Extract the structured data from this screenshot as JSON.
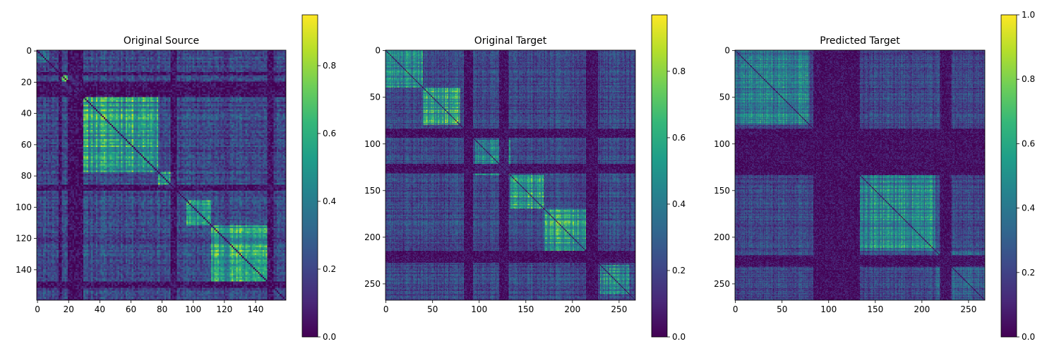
{
  "chart_data": [
    {
      "type": "heatmap",
      "title": "Original Source",
      "size": 160,
      "xticks": [
        0,
        20,
        40,
        60,
        80,
        100,
        120,
        140
      ],
      "yticks": [
        0,
        20,
        40,
        60,
        80,
        100,
        120,
        140
      ],
      "colorbar": {
        "min": 0.0,
        "max": 0.95,
        "ticks": [
          0.0,
          0.2,
          0.4,
          0.6,
          0.8
        ],
        "tick_labels": [
          "0.0",
          "0.2",
          "0.4",
          "0.6",
          "0.8"
        ]
      },
      "colormap": "viridis",
      "blocks": [
        [
          0,
          8,
          0.45
        ],
        [
          16,
          27,
          0.85
        ],
        [
          30,
          78,
          0.7
        ],
        [
          78,
          88,
          0.65
        ],
        [
          96,
          112,
          0.6
        ],
        [
          112,
          148,
          0.72
        ]
      ],
      "dark_bands": [
        [
          14,
          16
        ],
        [
          20,
          30
        ],
        [
          86,
          90
        ],
        [
          148,
          152
        ]
      ],
      "seed": 11
    },
    {
      "type": "heatmap",
      "title": "Original Target",
      "size": 268,
      "xticks": [
        0,
        50,
        100,
        150,
        200,
        250
      ],
      "yticks": [
        0,
        50,
        100,
        150,
        200,
        250
      ],
      "colorbar": {
        "min": 0.0,
        "max": 0.97,
        "ticks": [
          0.0,
          0.2,
          0.4,
          0.6,
          0.8
        ],
        "tick_labels": [
          "0.0",
          "0.2",
          "0.4",
          "0.6",
          "0.8"
        ]
      },
      "colormap": "viridis",
      "blocks": [
        [
          0,
          40,
          0.6
        ],
        [
          40,
          80,
          0.72
        ],
        [
          96,
          134,
          0.55
        ],
        [
          134,
          170,
          0.68
        ],
        [
          170,
          215,
          0.7
        ],
        [
          230,
          262,
          0.55
        ]
      ],
      "dark_bands": [
        [
          84,
          94
        ],
        [
          122,
          132
        ],
        [
          215,
          228
        ]
      ],
      "seed": 23
    },
    {
      "type": "heatmap",
      "title": "Predicted Target",
      "size": 268,
      "xticks": [
        0,
        50,
        100,
        150,
        200,
        250
      ],
      "yticks": [
        0,
        50,
        100,
        150,
        200,
        250
      ],
      "colorbar": {
        "min": 0.0,
        "max": 1.0,
        "ticks": [
          0.0,
          0.2,
          0.4,
          0.6,
          0.8,
          1.0
        ],
        "tick_labels": [
          "0.0",
          "0.2",
          "0.4",
          "0.6",
          "0.8",
          "1.0"
        ]
      },
      "colormap": "viridis",
      "blocks": [
        [
          0,
          80,
          0.55
        ],
        [
          134,
          215,
          0.58
        ],
        [
          215,
          268,
          0.4
        ]
      ],
      "dark_bands": [
        [
          84,
          134
        ],
        [
          220,
          232
        ]
      ],
      "seed": 37
    }
  ]
}
